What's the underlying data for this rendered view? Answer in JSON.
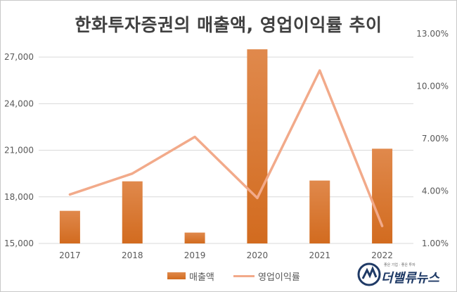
{
  "title": "한화투자증권의 매출액, 영업이익률 추이",
  "chart_data": {
    "type": "bar",
    "categories": [
      "2017",
      "2018",
      "2019",
      "2020",
      "2021",
      "2022"
    ],
    "series": [
      {
        "name": "매출액",
        "type": "bar",
        "axis": "left",
        "values": [
          17100,
          19000,
          15700,
          27500,
          19050,
          21100
        ]
      },
      {
        "name": "영업이익률",
        "type": "line",
        "axis": "right",
        "values": [
          3.8,
          5.0,
          7.1,
          3.6,
          10.9,
          2.0
        ]
      }
    ],
    "left_axis": {
      "ylim": [
        15000,
        28500
      ],
      "ticks": [
        15000,
        18000,
        21000,
        24000,
        27000
      ],
      "tick_labels": [
        "15,000",
        "18,000",
        "21,000",
        "24,000",
        "27,000"
      ]
    },
    "right_axis": {
      "ylim": [
        1.0,
        13.0
      ],
      "ticks": [
        1.0,
        4.0,
        7.0,
        10.0,
        13.0
      ],
      "tick_labels": [
        "1.00%",
        "4.00%",
        "7.00%",
        "10.00%",
        "13.00%"
      ]
    },
    "grid": true,
    "legend": "bottom-center",
    "colors": {
      "bar_top": "#e0894c",
      "bar_bottom": "#d26b1f",
      "line": "#f2aa8a",
      "grid": "#d9d9d9",
      "tick_text": "#595959"
    }
  },
  "legend": {
    "bar_label": "매출액",
    "line_label": "영업이익률"
  },
  "watermark": {
    "name": "더밸류뉴스",
    "tagline": "좋은 기업 · 좋은 투자"
  }
}
